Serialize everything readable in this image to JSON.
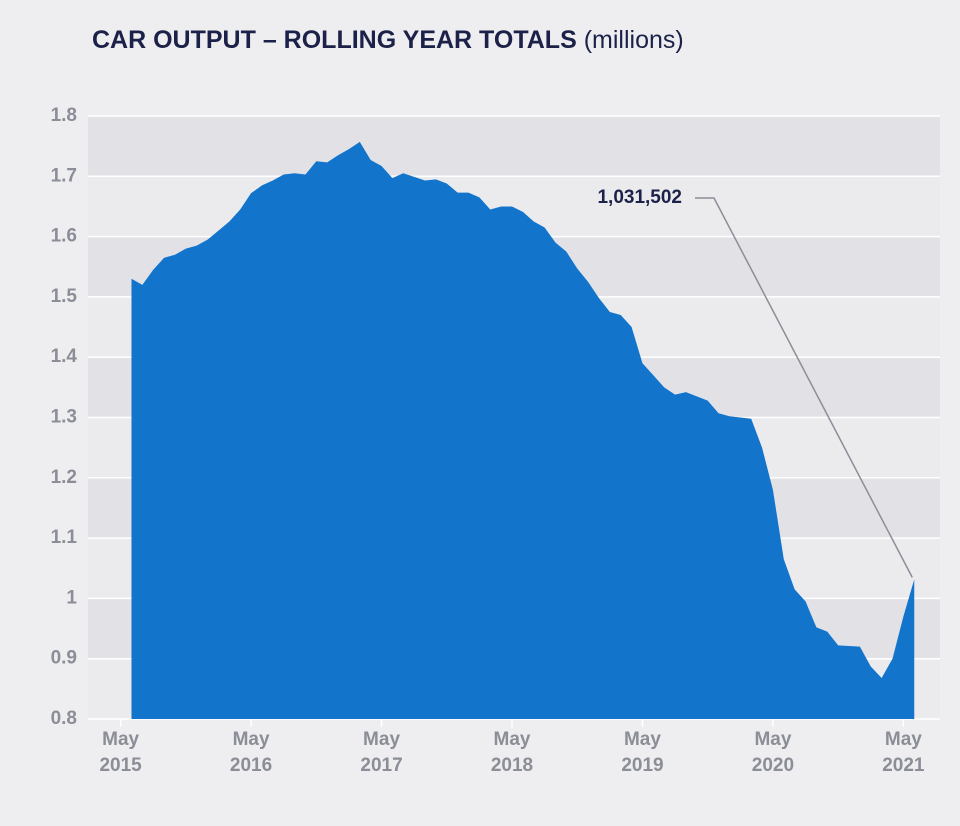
{
  "chart_data": {
    "type": "area",
    "title": "CAR OUTPUT – ROLLING YEAR TOTALS",
    "title_unit": "(millions)",
    "annotation": "1,031,502",
    "color": "#1374cc",
    "grid": true,
    "x": [
      "2015-06",
      "2015-07",
      "2015-08",
      "2015-09",
      "2015-10",
      "2015-11",
      "2015-12",
      "2016-01",
      "2016-02",
      "2016-03",
      "2016-04",
      "2016-05",
      "2016-06",
      "2016-07",
      "2016-08",
      "2016-09",
      "2016-10",
      "2016-11",
      "2016-12",
      "2017-01",
      "2017-02",
      "2017-03",
      "2017-04",
      "2017-05",
      "2017-06",
      "2017-07",
      "2017-08",
      "2017-09",
      "2017-10",
      "2017-11",
      "2017-12",
      "2018-01",
      "2018-02",
      "2018-03",
      "2018-04",
      "2018-05",
      "2018-06",
      "2018-07",
      "2018-08",
      "2018-09",
      "2018-10",
      "2018-11",
      "2018-12",
      "2019-01",
      "2019-02",
      "2019-03",
      "2019-04",
      "2019-05",
      "2019-06",
      "2019-07",
      "2019-08",
      "2019-09",
      "2019-10",
      "2019-11",
      "2019-12",
      "2020-01",
      "2020-02",
      "2020-03",
      "2020-04",
      "2020-05",
      "2020-06",
      "2020-07",
      "2020-08",
      "2020-09",
      "2020-10",
      "2020-11",
      "2020-12",
      "2021-01",
      "2021-02",
      "2021-03",
      "2021-04",
      "2021-05",
      "2021-06"
    ],
    "values": [
      1.53,
      1.52,
      1.545,
      1.565,
      1.57,
      1.58,
      1.585,
      1.595,
      1.61,
      1.625,
      1.645,
      1.672,
      1.685,
      1.693,
      1.703,
      1.705,
      1.703,
      1.725,
      1.723,
      1.735,
      1.745,
      1.757,
      1.727,
      1.717,
      1.697,
      1.705,
      1.699,
      1.693,
      1.695,
      1.688,
      1.673,
      1.673,
      1.665,
      1.645,
      1.65,
      1.65,
      1.641,
      1.625,
      1.615,
      1.59,
      1.575,
      1.547,
      1.525,
      1.498,
      1.475,
      1.47,
      1.45,
      1.39,
      1.37,
      1.35,
      1.338,
      1.342,
      1.335,
      1.328,
      1.307,
      1.302,
      1.3,
      1.298,
      1.25,
      1.18,
      1.065,
      1.015,
      0.995,
      0.952,
      0.945,
      0.922,
      0.921,
      0.92,
      0.887,
      0.868,
      0.9,
      0.97,
      1.031502
    ],
    "xlim": [
      "2015-02",
      "2021-08"
    ],
    "xticks": [
      {
        "value": "2015-05",
        "label": "May 2015"
      },
      {
        "value": "2016-05",
        "label": "May 2016"
      },
      {
        "value": "2017-05",
        "label": "May 2017"
      },
      {
        "value": "2018-05",
        "label": "May 2018"
      },
      {
        "value": "2019-05",
        "label": "May 2019"
      },
      {
        "value": "2020-05",
        "label": "May 2020"
      },
      {
        "value": "2021-05",
        "label": "May 2021"
      }
    ],
    "ylim": [
      0.8,
      1.8
    ],
    "yticks": [
      0.8,
      0.9,
      1,
      1.1,
      1.2,
      1.3,
      1.4,
      1.5,
      1.6,
      1.7,
      1.8
    ]
  }
}
